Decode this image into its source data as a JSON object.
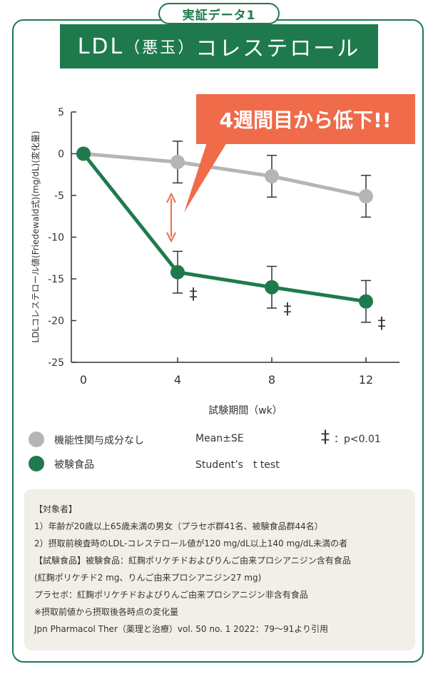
{
  "header": {
    "badge": "実証データ1",
    "title_main": "LDL",
    "title_paren": "（悪玉）",
    "title_rest": "コレステロール"
  },
  "callout": {
    "text": "4週間目から低下!!",
    "color": "#ef6b4a"
  },
  "chart_data": {
    "type": "line",
    "x": [
      0,
      4,
      8,
      12
    ],
    "xlabel": "試験期間（wk）",
    "ylabel": "LDLコレステロール値(Friedewald式)(mg/dL)(変化量)",
    "ylim": [
      -25,
      5
    ],
    "yticks": [
      5,
      0,
      -5,
      -10,
      -15,
      -20,
      -25
    ],
    "xticks": [
      0,
      4,
      8,
      12
    ],
    "series": [
      {
        "name": "機能性関与成分なし",
        "color": "#b5b5b5",
        "values": [
          0,
          -1.0,
          -2.7,
          -5.1
        ],
        "errors": [
          0,
          2.5,
          2.5,
          2.5
        ]
      },
      {
        "name": "被験食品",
        "color": "#1e7a4d",
        "values": [
          0,
          -14.2,
          -16.0,
          -17.7
        ],
        "errors": [
          0,
          2.5,
          2.5,
          2.5
        ]
      }
    ],
    "significance_marker": "‡",
    "significant_x": [
      4,
      8,
      12
    ]
  },
  "legend": {
    "control": "機能性関与成分なし",
    "test": "被験食品",
    "stat1": "Mean±SE",
    "stat2": "Student’s　t test",
    "sig_mark": "‡",
    "sig_text": "：p<0.01"
  },
  "notes": [
    "【対象者】",
    "1）年齢が20歳以上65歳未満の男女（プラセボ群41名、被験食品群44名）",
    "2）摂取前検査時のLDL-コレステロール値が120 mg/dL以上140 mg/dL未満の者",
    "【試験食品】被験食品：紅麹ポリケチドおよびりんご由来プロシアニジン含有食品",
    "(紅麹ポリケチド2 mg、りんご由来プロシアニジン27 mg)",
    "プラセボ：紅麹ポリケチドおよびりんご由来プロシアニジン非含有食品",
    "※摂取前値から摂取後各時点の変化量",
    "Jpn Pharmacol Ther（薬理と治療）vol. 50 no. 1 2022：79～91より引用"
  ]
}
